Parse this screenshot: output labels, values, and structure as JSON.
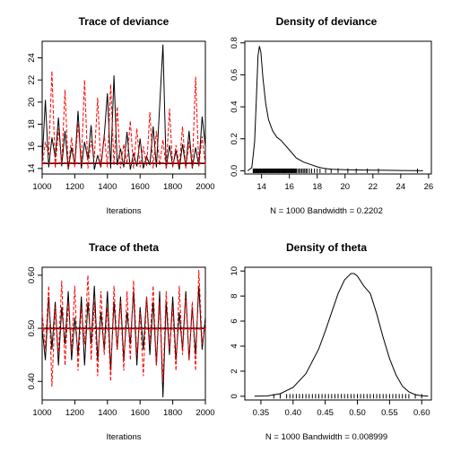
{
  "chart_data": [
    {
      "type": "line",
      "panel": "top-left",
      "title": "Trace of deviance",
      "xlabel": "Iterations",
      "ylabel": "",
      "xlim": [
        1000,
        2000
      ],
      "ylim": [
        13.5,
        25.5
      ],
      "xticks": [
        "1000",
        "1200",
        "1400",
        "1600",
        "1800",
        "2000"
      ],
      "yticks": [
        "14",
        "16",
        "18",
        "20",
        "22",
        "24"
      ],
      "series": [
        {
          "color": "#000000",
          "style": "solid",
          "kind": "trace",
          "x": [
            1000,
            1020,
            1040,
            1060,
            1080,
            1100,
            1120,
            1140,
            1160,
            1180,
            1200,
            1220,
            1240,
            1260,
            1280,
            1300,
            1320,
            1340,
            1360,
            1380,
            1400,
            1420,
            1440,
            1460,
            1480,
            1500,
            1520,
            1540,
            1560,
            1580,
            1600,
            1620,
            1640,
            1660,
            1680,
            1700,
            1720,
            1740,
            1760,
            1780,
            1800,
            1820,
            1840,
            1860,
            1880,
            1900,
            1920,
            1940,
            1960,
            1980,
            2000
          ],
          "y": [
            14.6,
            20.2,
            14.1,
            16.8,
            15.0,
            18.6,
            14.2,
            17.4,
            13.9,
            15.9,
            14.3,
            19.2,
            14.0,
            16.4,
            14.8,
            17.9,
            13.9,
            15.2,
            14.1,
            16.9,
            20.8,
            14.0,
            22.4,
            14.3,
            15.8,
            14.1,
            17.3,
            13.9,
            15.4,
            14.2,
            16.7,
            14.0,
            15.1,
            14.3,
            17.8,
            14.1,
            19.6,
            25.2,
            14.0,
            16.1,
            14.2,
            15.6,
            13.9,
            16.2,
            14.1,
            17.4,
            14.0,
            15.9,
            14.2,
            18.7,
            16.0
          ]
        },
        {
          "color": "#ff0000",
          "style": "dashed",
          "kind": "trace",
          "x": [
            1000,
            1020,
            1040,
            1060,
            1080,
            1100,
            1120,
            1140,
            1160,
            1180,
            1200,
            1220,
            1240,
            1260,
            1280,
            1300,
            1320,
            1340,
            1360,
            1380,
            1400,
            1420,
            1440,
            1460,
            1480,
            1500,
            1520,
            1540,
            1560,
            1580,
            1600,
            1620,
            1640,
            1660,
            1680,
            1700,
            1720,
            1740,
            1760,
            1780,
            1800,
            1820,
            1840,
            1860,
            1880,
            1900,
            1920,
            1940,
            1960,
            1980,
            2000
          ],
          "y": [
            14.2,
            16.4,
            15.2,
            22.8,
            14.0,
            17.6,
            14.4,
            21.1,
            14.0,
            16.8,
            14.1,
            18.1,
            14.5,
            22.0,
            14.0,
            16.5,
            15.0,
            20.4,
            14.2,
            17.1,
            14.1,
            21.6,
            14.3,
            19.6,
            14.0,
            16.2,
            14.4,
            18.3,
            14.0,
            17.6,
            14.1,
            16.0,
            14.2,
            19.1,
            14.0,
            17.4,
            14.3,
            16.6,
            14.0,
            19.4,
            14.1,
            16.1,
            14.2,
            17.8,
            14.0,
            16.4,
            14.1,
            22.3,
            14.2,
            16.9,
            14.3
          ]
        },
        {
          "color": "#000000",
          "style": "solid",
          "kind": "smooth",
          "x": [
            1000,
            1500,
            2000
          ],
          "y": [
            14.45,
            14.45,
            14.45
          ]
        },
        {
          "color": "#ff0000",
          "style": "dashed",
          "kind": "smooth",
          "x": [
            1000,
            1500,
            2000
          ],
          "y": [
            14.5,
            14.5,
            14.5
          ]
        }
      ]
    },
    {
      "type": "line",
      "panel": "top-right",
      "title": "Density of deviance",
      "xlabel": "N = 1000   Bandwidth = 0.2202",
      "ylabel": "",
      "xlim": [
        12.8,
        26.2
      ],
      "ylim": [
        -0.02,
        0.81
      ],
      "xticks": [
        "14",
        "16",
        "18",
        "20",
        "22",
        "24",
        "26"
      ],
      "yticks": [
        "0.0",
        "0.2",
        "0.4",
        "0.6",
        "0.8"
      ],
      "series": [
        {
          "color": "#000000",
          "style": "solid",
          "kind": "density",
          "x": [
            13.0,
            13.3,
            13.5,
            13.65,
            13.75,
            13.85,
            13.95,
            14.1,
            14.3,
            14.5,
            14.8,
            15.1,
            15.4,
            15.8,
            16.1,
            16.5,
            17.0,
            17.5,
            18.0,
            18.5,
            19.0,
            20.0,
            21.0,
            22.0,
            23.0,
            24.0,
            25.0,
            25.6
          ],
          "y": [
            0.0,
            0.02,
            0.18,
            0.5,
            0.72,
            0.78,
            0.74,
            0.58,
            0.42,
            0.32,
            0.25,
            0.21,
            0.19,
            0.15,
            0.12,
            0.08,
            0.055,
            0.04,
            0.025,
            0.015,
            0.01,
            0.007,
            0.005,
            0.004,
            0.003,
            0.002,
            0.001,
            0.0
          ]
        },
        {
          "color": "#000000",
          "kind": "rug",
          "x": [
            13.4,
            13.45,
            13.5,
            13.55,
            13.6,
            13.65,
            13.7,
            13.75,
            13.8,
            13.85,
            13.9,
            13.95,
            14.0,
            14.05,
            14.1,
            14.15,
            14.2,
            14.25,
            14.3,
            14.35,
            14.4,
            14.45,
            14.5,
            14.55,
            14.6,
            14.65,
            14.7,
            14.75,
            14.8,
            14.85,
            14.9,
            14.95,
            15.0,
            15.05,
            15.1,
            15.15,
            15.2,
            15.25,
            15.3,
            15.35,
            15.4,
            15.45,
            15.5,
            15.55,
            15.6,
            15.65,
            15.7,
            15.75,
            15.8,
            15.85,
            15.9,
            15.95,
            16.0,
            16.05,
            16.1,
            16.15,
            16.2,
            16.25,
            16.3,
            16.35,
            16.4,
            16.45,
            16.5,
            16.6,
            16.7,
            16.8,
            16.9,
            17.0,
            17.1,
            17.2,
            17.3,
            17.45,
            17.6,
            17.8,
            18.0,
            18.2,
            18.6,
            19.0,
            19.5,
            20.2,
            20.8,
            21.6,
            22.4,
            25.2
          ]
        }
      ]
    },
    {
      "type": "line",
      "panel": "bottom-left",
      "title": "Trace of theta",
      "xlabel": "Iterations",
      "ylabel": "",
      "xlim": [
        1000,
        2000
      ],
      "ylim": [
        0.365,
        0.615
      ],
      "xticks": [
        "1000",
        "1200",
        "1400",
        "1600",
        "1800",
        "2000"
      ],
      "yticks": [
        "0.40",
        "0.50",
        "0.60"
      ],
      "series": [
        {
          "color": "#000000",
          "style": "solid",
          "kind": "trace",
          "x": [
            1000,
            1020,
            1040,
            1060,
            1080,
            1100,
            1120,
            1140,
            1160,
            1180,
            1200,
            1220,
            1240,
            1260,
            1280,
            1300,
            1320,
            1340,
            1360,
            1380,
            1400,
            1420,
            1440,
            1460,
            1480,
            1500,
            1520,
            1540,
            1560,
            1580,
            1600,
            1620,
            1640,
            1660,
            1680,
            1700,
            1720,
            1740,
            1760,
            1780,
            1800,
            1820,
            1840,
            1860,
            1880,
            1900,
            1920,
            1940,
            1960,
            1980,
            2000
          ],
          "y": [
            0.5,
            0.44,
            0.56,
            0.46,
            0.55,
            0.43,
            0.54,
            0.47,
            0.57,
            0.44,
            0.52,
            0.45,
            0.56,
            0.43,
            0.55,
            0.47,
            0.58,
            0.44,
            0.53,
            0.46,
            0.57,
            0.42,
            0.55,
            0.46,
            0.56,
            0.44,
            0.53,
            0.47,
            0.57,
            0.43,
            0.54,
            0.46,
            0.56,
            0.45,
            0.55,
            0.43,
            0.57,
            0.37,
            0.55,
            0.45,
            0.56,
            0.44,
            0.53,
            0.46,
            0.57,
            0.44,
            0.54,
            0.45,
            0.58,
            0.46,
            0.52
          ]
        },
        {
          "color": "#ff0000",
          "style": "dashed",
          "kind": "trace",
          "x": [
            1000,
            1020,
            1040,
            1060,
            1080,
            1100,
            1120,
            1140,
            1160,
            1180,
            1200,
            1220,
            1240,
            1260,
            1280,
            1300,
            1320,
            1340,
            1360,
            1380,
            1400,
            1420,
            1440,
            1460,
            1480,
            1500,
            1520,
            1540,
            1560,
            1580,
            1600,
            1620,
            1640,
            1660,
            1680,
            1700,
            1720,
            1740,
            1760,
            1780,
            1800,
            1820,
            1840,
            1860,
            1880,
            1900,
            1920,
            1940,
            1960,
            1980,
            2000
          ],
          "y": [
            0.53,
            0.46,
            0.58,
            0.39,
            0.54,
            0.45,
            0.59,
            0.43,
            0.55,
            0.46,
            0.58,
            0.42,
            0.54,
            0.47,
            0.6,
            0.44,
            0.55,
            0.41,
            0.57,
            0.45,
            0.54,
            0.4,
            0.58,
            0.46,
            0.55,
            0.42,
            0.57,
            0.44,
            0.59,
            0.45,
            0.53,
            0.41,
            0.56,
            0.47,
            0.58,
            0.43,
            0.55,
            0.4,
            0.57,
            0.46,
            0.54,
            0.42,
            0.58,
            0.45,
            0.56,
            0.44,
            0.55,
            0.42,
            0.61,
            0.47,
            0.51
          ]
        },
        {
          "color": "#000000",
          "style": "solid",
          "kind": "smooth",
          "x": [
            1000,
            1500,
            2000
          ],
          "y": [
            0.5,
            0.5,
            0.5
          ]
        },
        {
          "color": "#ff0000",
          "style": "dashed",
          "kind": "smooth",
          "x": [
            1000,
            1500,
            2000
          ],
          "y": [
            0.499,
            0.499,
            0.499
          ]
        }
      ]
    },
    {
      "type": "line",
      "panel": "bottom-right",
      "title": "Density of theta",
      "xlabel": "N = 1000   Bandwidth = 0.008999",
      "ylabel": "",
      "xlim": [
        0.325,
        0.615
      ],
      "ylim": [
        -0.3,
        10.3
      ],
      "xticks": [
        "0.35",
        "0.40",
        "0.45",
        "0.50",
        "0.55",
        "0.60"
      ],
      "yticks": [
        "0",
        "2",
        "4",
        "6",
        "8",
        "10"
      ],
      "series": [
        {
          "color": "#000000",
          "style": "solid",
          "kind": "density",
          "x": [
            0.34,
            0.36,
            0.38,
            0.4,
            0.42,
            0.44,
            0.45,
            0.46,
            0.47,
            0.48,
            0.49,
            0.495,
            0.5,
            0.51,
            0.52,
            0.53,
            0.54,
            0.55,
            0.56,
            0.57,
            0.58,
            0.59,
            0.6,
            0.61
          ],
          "y": [
            0.0,
            0.02,
            0.2,
            0.7,
            1.8,
            3.8,
            5.2,
            6.7,
            8.2,
            9.3,
            9.8,
            9.8,
            9.6,
            8.8,
            8.2,
            6.6,
            4.7,
            3.0,
            1.7,
            0.8,
            0.35,
            0.12,
            0.04,
            0.0
          ]
        },
        {
          "color": "#000000",
          "kind": "rug",
          "x": [
            0.37,
            0.38,
            0.39,
            0.395,
            0.4,
            0.405,
            0.41,
            0.415,
            0.42,
            0.425,
            0.43,
            0.435,
            0.44,
            0.445,
            0.45,
            0.455,
            0.46,
            0.465,
            0.47,
            0.475,
            0.48,
            0.485,
            0.49,
            0.495,
            0.5,
            0.505,
            0.51,
            0.515,
            0.52,
            0.525,
            0.53,
            0.535,
            0.54,
            0.545,
            0.55,
            0.555,
            0.56,
            0.565,
            0.57,
            0.575,
            0.58,
            0.59,
            0.6
          ]
        }
      ]
    }
  ]
}
